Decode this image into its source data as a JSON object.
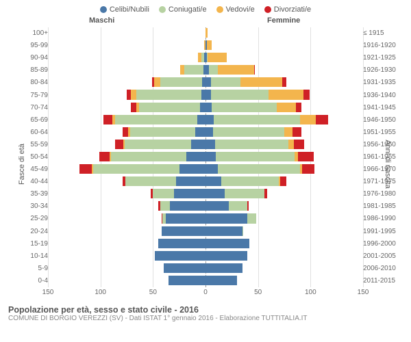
{
  "legend": [
    {
      "label": "Celibi/Nubili",
      "color": "#4a78a8"
    },
    {
      "label": "Coniugati/e",
      "color": "#b7d2a2"
    },
    {
      "label": "Vedovi/e",
      "color": "#f3b54d"
    },
    {
      "label": "Divorziati/e",
      "color": "#cf2026"
    }
  ],
  "headers": {
    "male": "Maschi",
    "female": "Femmine"
  },
  "axis_labels": {
    "left": "Fasce di età",
    "right": "Anni di nascita"
  },
  "x_axis": {
    "min": -150,
    "max": 150,
    "ticks": [
      -150,
      -100,
      -50,
      0,
      50,
      100,
      150
    ],
    "labels": [
      "150",
      "100",
      "50",
      "0",
      "50",
      "100",
      "150"
    ]
  },
  "title": "Popolazione per età, sesso e stato civile - 2016",
  "subtitle": "COMUNE DI BORGIO VEREZZI (SV) - Dati ISTAT 1° gennaio 2016 - Elaborazione TUTTITALIA.IT",
  "background_color": "#ffffff",
  "grid_color": "#cccccc",
  "rows": [
    {
      "age": "100+",
      "birth": "≤ 1915",
      "m": {
        "c": 0,
        "co": 0,
        "v": 0,
        "d": 0
      },
      "f": {
        "c": 0,
        "co": 0,
        "v": 2,
        "d": 0
      }
    },
    {
      "age": "95-99",
      "birth": "1916-1920",
      "m": {
        "c": 0,
        "co": 0,
        "v": 1,
        "d": 0
      },
      "f": {
        "c": 1,
        "co": 0,
        "v": 5,
        "d": 0
      }
    },
    {
      "age": "90-94",
      "birth": "1921-1925",
      "m": {
        "c": 1,
        "co": 3,
        "v": 3,
        "d": 0
      },
      "f": {
        "c": 1,
        "co": 1,
        "v": 18,
        "d": 0
      }
    },
    {
      "age": "85-89",
      "birth": "1926-1930",
      "m": {
        "c": 2,
        "co": 18,
        "v": 4,
        "d": 0
      },
      "f": {
        "c": 3,
        "co": 9,
        "v": 34,
        "d": 1
      }
    },
    {
      "age": "80-84",
      "birth": "1931-1935",
      "m": {
        "c": 3,
        "co": 40,
        "v": 6,
        "d": 2
      },
      "f": {
        "c": 5,
        "co": 28,
        "v": 40,
        "d": 4
      }
    },
    {
      "age": "75-79",
      "birth": "1936-1940",
      "m": {
        "c": 4,
        "co": 62,
        "v": 5,
        "d": 4
      },
      "f": {
        "c": 5,
        "co": 55,
        "v": 33,
        "d": 6
      }
    },
    {
      "age": "70-74",
      "birth": "1941-1945",
      "m": {
        "c": 5,
        "co": 58,
        "v": 3,
        "d": 5
      },
      "f": {
        "c": 6,
        "co": 62,
        "v": 18,
        "d": 5
      }
    },
    {
      "age": "65-69",
      "birth": "1946-1950",
      "m": {
        "c": 8,
        "co": 78,
        "v": 3,
        "d": 8
      },
      "f": {
        "c": 8,
        "co": 82,
        "v": 15,
        "d": 12
      }
    },
    {
      "age": "60-64",
      "birth": "1951-1955",
      "m": {
        "c": 10,
        "co": 62,
        "v": 2,
        "d": 5
      },
      "f": {
        "c": 7,
        "co": 68,
        "v": 8,
        "d": 8
      }
    },
    {
      "age": "55-59",
      "birth": "1956-1960",
      "m": {
        "c": 14,
        "co": 63,
        "v": 1,
        "d": 8
      },
      "f": {
        "c": 9,
        "co": 70,
        "v": 5,
        "d": 10
      }
    },
    {
      "age": "50-54",
      "birth": "1961-1965",
      "m": {
        "c": 18,
        "co": 72,
        "v": 1,
        "d": 10
      },
      "f": {
        "c": 10,
        "co": 75,
        "v": 3,
        "d": 15
      }
    },
    {
      "age": "45-49",
      "birth": "1966-1970",
      "m": {
        "c": 25,
        "co": 82,
        "v": 1,
        "d": 12
      },
      "f": {
        "c": 12,
        "co": 78,
        "v": 2,
        "d": 12
      }
    },
    {
      "age": "40-44",
      "birth": "1971-1975",
      "m": {
        "c": 28,
        "co": 48,
        "v": 0,
        "d": 3
      },
      "f": {
        "c": 15,
        "co": 55,
        "v": 1,
        "d": 6
      }
    },
    {
      "age": "35-39",
      "birth": "1976-1980",
      "m": {
        "c": 30,
        "co": 20,
        "v": 0,
        "d": 2
      },
      "f": {
        "c": 18,
        "co": 38,
        "v": 0,
        "d": 3
      }
    },
    {
      "age": "30-34",
      "birth": "1981-1985",
      "m": {
        "c": 34,
        "co": 9,
        "v": 0,
        "d": 2
      },
      "f": {
        "c": 22,
        "co": 18,
        "v": 0,
        "d": 1
      }
    },
    {
      "age": "25-29",
      "birth": "1986-1990",
      "m": {
        "c": 38,
        "co": 3,
        "v": 0,
        "d": 1
      },
      "f": {
        "c": 40,
        "co": 8,
        "v": 0,
        "d": 0
      }
    },
    {
      "age": "20-24",
      "birth": "1991-1995",
      "m": {
        "c": 42,
        "co": 0,
        "v": 0,
        "d": 0
      },
      "f": {
        "c": 35,
        "co": 1,
        "v": 0,
        "d": 0
      }
    },
    {
      "age": "15-19",
      "birth": "1996-2000",
      "m": {
        "c": 45,
        "co": 0,
        "v": 0,
        "d": 0
      },
      "f": {
        "c": 42,
        "co": 0,
        "v": 0,
        "d": 0
      }
    },
    {
      "age": "10-14",
      "birth": "2001-2005",
      "m": {
        "c": 48,
        "co": 0,
        "v": 0,
        "d": 0
      },
      "f": {
        "c": 40,
        "co": 0,
        "v": 0,
        "d": 0
      }
    },
    {
      "age": "5-9",
      "birth": "2006-2010",
      "m": {
        "c": 40,
        "co": 0,
        "v": 0,
        "d": 0
      },
      "f": {
        "c": 35,
        "co": 0,
        "v": 0,
        "d": 0
      }
    },
    {
      "age": "0-4",
      "birth": "2011-2015",
      "m": {
        "c": 35,
        "co": 0,
        "v": 0,
        "d": 0
      },
      "f": {
        "c": 30,
        "co": 0,
        "v": 0,
        "d": 0
      }
    }
  ]
}
